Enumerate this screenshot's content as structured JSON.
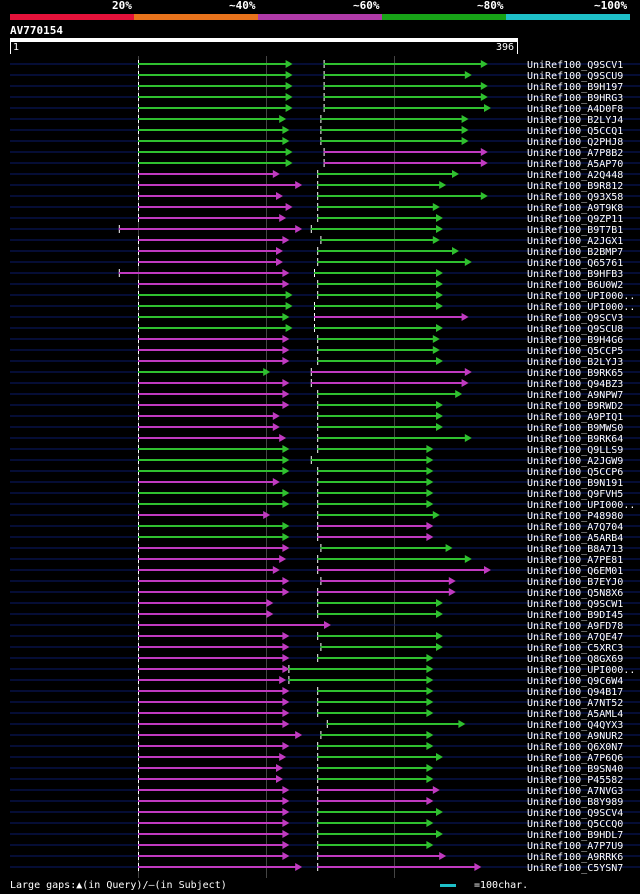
{
  "legend": {
    "segments": [
      {
        "label": "20%",
        "color": "#e4123a"
      },
      {
        "label": "~40%",
        "color": "#e8731c"
      },
      {
        "label": "~60%",
        "color": "#b03aa8"
      },
      {
        "label": "~80%",
        "color": "#17a317"
      },
      {
        "label": "~100%",
        "color": "#1ec0c8"
      }
    ]
  },
  "query": {
    "id": "AV770154",
    "start_label": "1",
    "end_label": "396",
    "length": 396
  },
  "colors": {
    "green": "#2fc02f",
    "magenta": "#c03ac0",
    "navy": "#0a1a6a",
    "tick": "#ffffff"
  },
  "hits": [
    {
      "name": "UniRef100_Q9SCV1",
      "s1": [
        40,
        88,
        "g"
      ],
      "s2": [
        98,
        149,
        "g"
      ]
    },
    {
      "name": "UniRef100_Q9SCU9",
      "s1": [
        40,
        88,
        "g"
      ],
      "s2": [
        98,
        144,
        "g"
      ]
    },
    {
      "name": "UniRef100_B9H197",
      "s1": [
        40,
        88,
        "g"
      ],
      "s2": [
        98,
        149,
        "g"
      ]
    },
    {
      "name": "UniRef100_B9HRG3",
      "s1": [
        40,
        88,
        "g"
      ],
      "s2": [
        98,
        149,
        "g"
      ]
    },
    {
      "name": "UniRef100_A4D0F8",
      "s1": [
        40,
        88,
        "g"
      ],
      "s2": [
        98,
        150,
        "g"
      ]
    },
    {
      "name": "UniRef100_B2LYJ4",
      "s1": [
        40,
        86,
        "g"
      ],
      "s2": [
        97,
        143,
        "g"
      ]
    },
    {
      "name": "UniRef100_Q5CCQ1",
      "s1": [
        40,
        87,
        "g"
      ],
      "s2": [
        97,
        143,
        "g"
      ]
    },
    {
      "name": "UniRef100_Q2PHJ8",
      "s1": [
        40,
        87,
        "g"
      ],
      "s2": [
        97,
        143,
        "g"
      ]
    },
    {
      "name": "UniRef100_A7P8B2",
      "s1": [
        40,
        88,
        "g"
      ],
      "s2": [
        98,
        149,
        "m"
      ]
    },
    {
      "name": "UniRef100_A5AP70",
      "s1": [
        40,
        88,
        "g"
      ],
      "s2": [
        98,
        149,
        "m"
      ]
    },
    {
      "name": "UniRef100_A2Q448",
      "s1": [
        40,
        84,
        "m"
      ],
      "s2": [
        96,
        140,
        "g"
      ]
    },
    {
      "name": "UniRef100_B9R812",
      "s1": [
        40,
        91,
        "m"
      ],
      "s2": [
        96,
        136,
        "g"
      ]
    },
    {
      "name": "UniRef100_Q93X58",
      "s1": [
        40,
        85,
        "m"
      ],
      "s2": [
        96,
        149,
        "g"
      ]
    },
    {
      "name": "UniRef100_A9T9K8",
      "s1": [
        40,
        88,
        "m"
      ],
      "s2": [
        96,
        134,
        "g"
      ]
    },
    {
      "name": "UniRef100_Q9ZP11",
      "s1": [
        40,
        86,
        "m"
      ],
      "s2": [
        96,
        135,
        "g"
      ]
    },
    {
      "name": "UniRef100_B9T7B1",
      "s1": [
        34,
        91,
        "m"
      ],
      "s2": [
        94,
        135,
        "g"
      ]
    },
    {
      "name": "UniRef100_A2JGX1",
      "s1": [
        40,
        87,
        "m"
      ],
      "s2": [
        97,
        134,
        "g"
      ]
    },
    {
      "name": "UniRef100_B2BMP7",
      "s1": [
        40,
        85,
        "m"
      ],
      "s2": [
        96,
        140,
        "g"
      ]
    },
    {
      "name": "UniRef100_Q65761",
      "s1": [
        40,
        85,
        "m"
      ],
      "s2": [
        96,
        144,
        "g"
      ]
    },
    {
      "name": "UniRef100_B9HFB3",
      "s1": [
        34,
        87,
        "m"
      ],
      "s2": [
        95,
        135,
        "g"
      ]
    },
    {
      "name": "UniRef100_B6U0W2",
      "s1": [
        40,
        87,
        "m"
      ],
      "s2": [
        96,
        135,
        "g"
      ]
    },
    {
      "name": "UniRef100_UPI000..",
      "s1": [
        40,
        88,
        "g"
      ],
      "s2": [
        96,
        135,
        "g"
      ]
    },
    {
      "name": "UniRef100_UPI000..",
      "s1": [
        40,
        88,
        "g"
      ],
      "s2": [
        95,
        135,
        "g"
      ]
    },
    {
      "name": "UniRef100_Q9SCV3",
      "s1": [
        40,
        87,
        "g"
      ],
      "s2": [
        95,
        143,
        "m"
      ]
    },
    {
      "name": "UniRef100_Q9SCU8",
      "s1": [
        40,
        88,
        "g"
      ],
      "s2": [
        95,
        135,
        "g"
      ]
    },
    {
      "name": "UniRef100_B9H4G6",
      "s1": [
        40,
        87,
        "m"
      ],
      "s2": [
        96,
        134,
        "g"
      ]
    },
    {
      "name": "UniRef100_Q5CCP5",
      "s1": [
        40,
        87,
        "m"
      ],
      "s2": [
        96,
        134,
        "g"
      ]
    },
    {
      "name": "UniRef100_B2LYJ3",
      "s1": [
        40,
        87,
        "m"
      ],
      "s2": [
        96,
        135,
        "g"
      ]
    },
    {
      "name": "UniRef100_B9RK65",
      "s1": [
        40,
        81,
        "g"
      ],
      "s2": [
        94,
        144,
        "m"
      ]
    },
    {
      "name": "UniRef100_Q94BZ3",
      "s1": [
        40,
        87,
        "m"
      ],
      "s2": [
        94,
        143,
        "m"
      ]
    },
    {
      "name": "UniRef100_A9NPW7",
      "s1": [
        40,
        87,
        "m"
      ],
      "s2": [
        96,
        141,
        "g"
      ]
    },
    {
      "name": "UniRef100_B9RWD2",
      "s1": [
        40,
        87,
        "m"
      ],
      "s2": [
        96,
        135,
        "g"
      ]
    },
    {
      "name": "UniRef100_A9PIQ1",
      "s1": [
        40,
        84,
        "m"
      ],
      "s2": [
        96,
        135,
        "g"
      ]
    },
    {
      "name": "UniRef100_B9MWS0",
      "s1": [
        40,
        84,
        "m"
      ],
      "s2": [
        96,
        135,
        "g"
      ]
    },
    {
      "name": "UniRef100_B9RK64",
      "s1": [
        40,
        86,
        "m"
      ],
      "s2": [
        96,
        144,
        "g"
      ]
    },
    {
      "name": "UniRef100_Q9LLS9",
      "s1": [
        40,
        87,
        "g"
      ],
      "s2": [
        96,
        132,
        "g"
      ]
    },
    {
      "name": "UniRef100_A2JGW9",
      "s1": [
        40,
        87,
        "g"
      ],
      "s2": [
        94,
        132,
        "g"
      ]
    },
    {
      "name": "UniRef100_Q5CCP6",
      "s1": [
        40,
        87,
        "g"
      ],
      "s2": [
        96,
        132,
        "g"
      ]
    },
    {
      "name": "UniRef100_B9N191",
      "s1": [
        40,
        84,
        "m"
      ],
      "s2": [
        96,
        132,
        "g"
      ]
    },
    {
      "name": "UniRef100_Q9FVH5",
      "s1": [
        40,
        87,
        "g"
      ],
      "s2": [
        96,
        132,
        "g"
      ]
    },
    {
      "name": "UniRef100_UPI000..",
      "s1": [
        40,
        87,
        "g"
      ],
      "s2": [
        96,
        132,
        "g"
      ]
    },
    {
      "name": "UniRef100_P48980",
      "s1": [
        40,
        81,
        "m"
      ],
      "s2": [
        96,
        134,
        "g"
      ]
    },
    {
      "name": "UniRef100_A7Q704",
      "s1": [
        40,
        87,
        "g"
      ],
      "s2": [
        96,
        132,
        "m"
      ]
    },
    {
      "name": "UniRef100_A5ARB4",
      "s1": [
        40,
        87,
        "g"
      ],
      "s2": [
        96,
        132,
        "m"
      ]
    },
    {
      "name": "UniRef100_B8A713",
      "s1": [
        40,
        87,
        "m"
      ],
      "s2": [
        97,
        138,
        "g"
      ]
    },
    {
      "name": "UniRef100_A7PE81",
      "s1": [
        40,
        86,
        "m"
      ],
      "s2": [
        96,
        144,
        "g"
      ]
    },
    {
      "name": "UniRef100_Q6EM01",
      "s1": [
        40,
        84,
        "m"
      ],
      "s2": [
        96,
        150,
        "m"
      ]
    },
    {
      "name": "UniRef100_B7EYJ0",
      "s1": [
        40,
        87,
        "m"
      ],
      "s2": [
        97,
        139,
        "m"
      ]
    },
    {
      "name": "UniRef100_Q5N8X6",
      "s1": [
        40,
        87,
        "m"
      ],
      "s2": [
        96,
        139,
        "m"
      ]
    },
    {
      "name": "UniRef100_Q9SCW1",
      "s1": [
        40,
        82,
        "m"
      ],
      "s2": [
        96,
        135,
        "g"
      ]
    },
    {
      "name": "UniRef100_B9DI45",
      "s1": [
        40,
        82,
        "m"
      ],
      "s2": [
        96,
        135,
        "g"
      ]
    },
    {
      "name": "UniRef100_A9FD78",
      "s1": [
        40,
        100,
        "m"
      ],
      "s2": [
        0,
        0,
        "n"
      ]
    },
    {
      "name": "UniRef100_A7QE47",
      "s1": [
        40,
        87,
        "m"
      ],
      "s2": [
        96,
        135,
        "g"
      ]
    },
    {
      "name": "UniRef100_C5XRC3",
      "s1": [
        40,
        87,
        "m"
      ],
      "s2": [
        97,
        135,
        "g"
      ]
    },
    {
      "name": "UniRef100_Q8GX69",
      "s1": [
        40,
        87,
        "m"
      ],
      "s2": [
        96,
        132,
        "g"
      ]
    },
    {
      "name": "UniRef100_UPI000..",
      "s1": [
        40,
        87,
        "m"
      ],
      "s2": [
        87,
        132,
        "g"
      ]
    },
    {
      "name": "UniRef100_Q9C6W4",
      "s1": [
        40,
        86,
        "m"
      ],
      "s2": [
        87,
        132,
        "g"
      ]
    },
    {
      "name": "UniRef100_Q94B17",
      "s1": [
        40,
        87,
        "m"
      ],
      "s2": [
        96,
        132,
        "g"
      ]
    },
    {
      "name": "UniRef100_A7NT52",
      "s1": [
        40,
        87,
        "m"
      ],
      "s2": [
        96,
        132,
        "g"
      ]
    },
    {
      "name": "UniRef100_A5AML4",
      "s1": [
        40,
        87,
        "m"
      ],
      "s2": [
        96,
        132,
        "g"
      ]
    },
    {
      "name": "UniRef100_Q4QYX3",
      "s1": [
        40,
        87,
        "m"
      ],
      "s2": [
        99,
        142,
        "g"
      ]
    },
    {
      "name": "UniRef100_A9NUR2",
      "s1": [
        40,
        91,
        "m"
      ],
      "s2": [
        97,
        132,
        "g"
      ]
    },
    {
      "name": "UniRef100_Q6X0N7",
      "s1": [
        40,
        87,
        "m"
      ],
      "s2": [
        96,
        132,
        "g"
      ]
    },
    {
      "name": "UniRef100_A7P6Q6",
      "s1": [
        40,
        86,
        "m"
      ],
      "s2": [
        96,
        135,
        "g"
      ]
    },
    {
      "name": "UniRef100_B9SN40",
      "s1": [
        40,
        85,
        "m"
      ],
      "s2": [
        96,
        132,
        "g"
      ]
    },
    {
      "name": "UniRef100_P45582",
      "s1": [
        40,
        85,
        "m"
      ],
      "s2": [
        96,
        132,
        "g"
      ]
    },
    {
      "name": "UniRef100_A7NVG3",
      "s1": [
        40,
        87,
        "m"
      ],
      "s2": [
        96,
        134,
        "m"
      ]
    },
    {
      "name": "UniRef100_B8Y989",
      "s1": [
        40,
        87,
        "m"
      ],
      "s2": [
        96,
        132,
        "m"
      ]
    },
    {
      "name": "UniRef100_Q9SCV4",
      "s1": [
        40,
        87,
        "m"
      ],
      "s2": [
        96,
        135,
        "g"
      ]
    },
    {
      "name": "UniRef100_Q5CCQ0",
      "s1": [
        40,
        87,
        "m"
      ],
      "s2": [
        96,
        132,
        "g"
      ]
    },
    {
      "name": "UniRef100_B9HDL7",
      "s1": [
        40,
        87,
        "m"
      ],
      "s2": [
        96,
        135,
        "g"
      ]
    },
    {
      "name": "UniRef100_A7P7U9",
      "s1": [
        40,
        87,
        "m"
      ],
      "s2": [
        96,
        132,
        "g"
      ]
    },
    {
      "name": "UniRef100_A9RRK6",
      "s1": [
        40,
        87,
        "m"
      ],
      "s2": [
        96,
        136,
        "m"
      ]
    },
    {
      "name": "UniRef100_C5YSN7",
      "s1": [
        40,
        91,
        "m"
      ],
      "s2": [
        96,
        147,
        "m"
      ]
    }
  ],
  "footer": {
    "large_gaps": "Large gaps:▲(in Query)/—(in Subject)",
    "scale": "=100char."
  }
}
